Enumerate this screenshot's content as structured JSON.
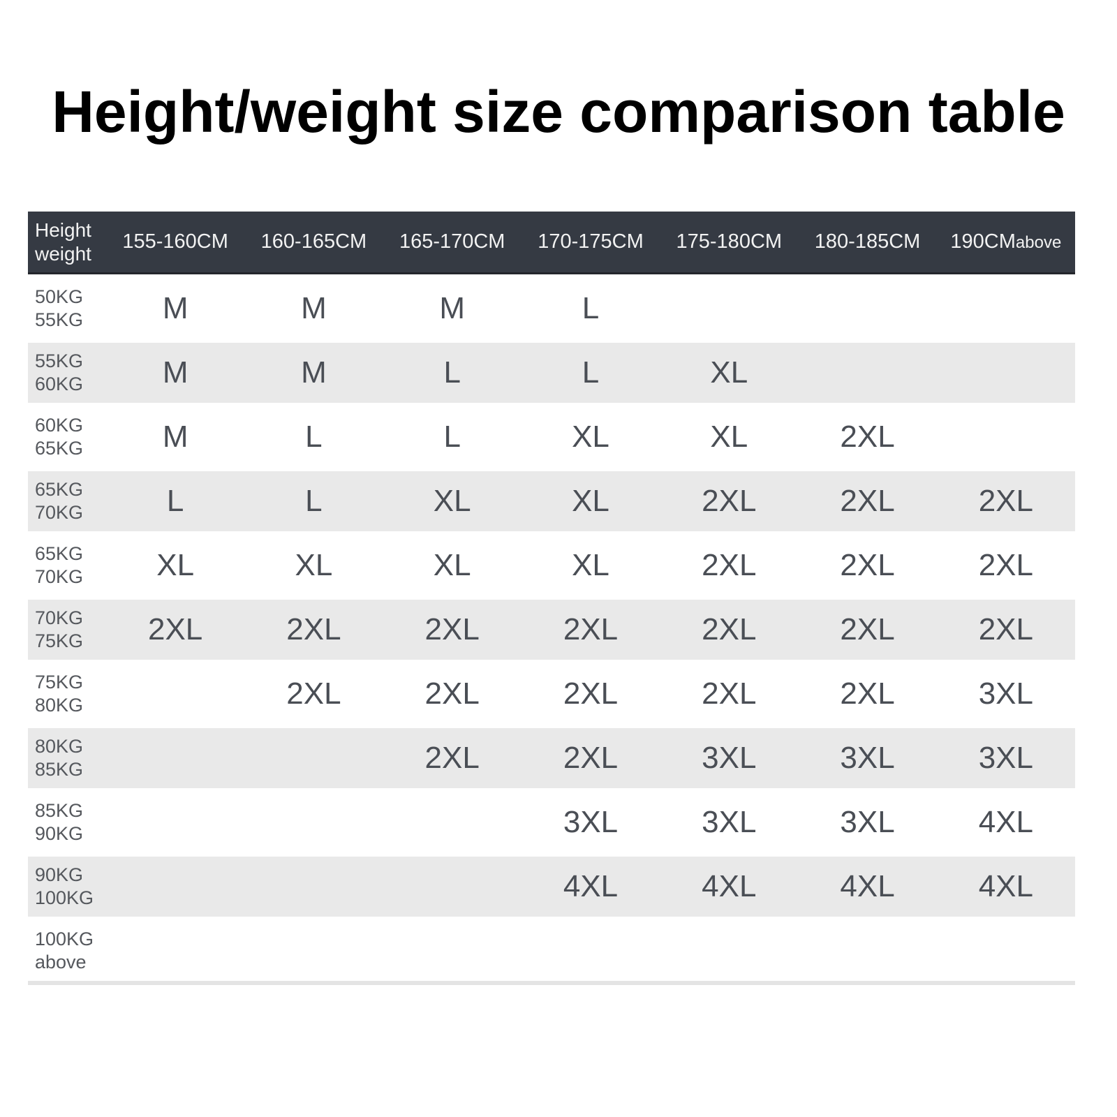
{
  "title": "Height/weight size comparison table",
  "header": {
    "corner": [
      "Height",
      "weight"
    ],
    "columns": [
      {
        "label": "155-160CM",
        "suffix": ""
      },
      {
        "label": "160-165CM",
        "suffix": ""
      },
      {
        "label": "165-170CM",
        "suffix": ""
      },
      {
        "label": "170-175CM",
        "suffix": ""
      },
      {
        "label": "175-180CM",
        "suffix": ""
      },
      {
        "label": "180-185CM",
        "suffix": ""
      },
      {
        "label": "190CM",
        "suffix": "above"
      }
    ]
  },
  "rows": [
    {
      "weight": [
        "50KG",
        "55KG"
      ],
      "sizes": [
        "M",
        "M",
        "M",
        "L",
        "",
        "",
        ""
      ]
    },
    {
      "weight": [
        "55KG",
        "60KG"
      ],
      "sizes": [
        "M",
        "M",
        "L",
        "L",
        "XL",
        "",
        ""
      ]
    },
    {
      "weight": [
        "60KG",
        "65KG"
      ],
      "sizes": [
        "M",
        "L",
        "L",
        "XL",
        "XL",
        "2XL",
        ""
      ]
    },
    {
      "weight": [
        "65KG",
        "70KG"
      ],
      "sizes": [
        "L",
        "L",
        "XL",
        "XL",
        "2XL",
        "2XL",
        "2XL"
      ]
    },
    {
      "weight": [
        "65KG",
        "70KG"
      ],
      "sizes": [
        "XL",
        "XL",
        "XL",
        "XL",
        "2XL",
        "2XL",
        "2XL"
      ]
    },
    {
      "weight": [
        "70KG",
        "75KG"
      ],
      "sizes": [
        "2XL",
        "2XL",
        "2XL",
        "2XL",
        "2XL",
        "2XL",
        "2XL"
      ]
    },
    {
      "weight": [
        "75KG",
        "80KG"
      ],
      "sizes": [
        "",
        "2XL",
        "2XL",
        "2XL",
        "2XL",
        "2XL",
        "3XL"
      ]
    },
    {
      "weight": [
        "80KG",
        "85KG"
      ],
      "sizes": [
        "",
        "",
        "2XL",
        "2XL",
        "3XL",
        "3XL",
        "3XL"
      ]
    },
    {
      "weight": [
        "85KG",
        "90KG"
      ],
      "sizes": [
        "",
        "",
        "",
        "3XL",
        "3XL",
        "3XL",
        "4XL"
      ]
    },
    {
      "weight": [
        "90KG",
        "100KG"
      ],
      "sizes": [
        "",
        "",
        "",
        "4XL",
        "4XL",
        "4XL",
        "4XL"
      ]
    },
    {
      "weight": [
        "100KG",
        "above"
      ],
      "sizes": [
        "",
        "",
        "",
        "",
        "",
        "",
        ""
      ]
    }
  ],
  "colors": {
    "header_bg": "#353a43",
    "header_border": "#23262c",
    "header_text": "#f2f2f2",
    "row_alt_bg": "#e9e9e9",
    "value_text": "#4a4e55",
    "label_text": "#55585d",
    "title_text": "#000000",
    "divider": "#e4e4e4"
  },
  "chart_data": {
    "type": "table",
    "title": "Height/weight size comparison table",
    "columns": [
      "Height weight",
      "155-160CM",
      "160-165CM",
      "165-170CM",
      "170-175CM",
      "175-180CM",
      "180-185CM",
      "190CM above"
    ],
    "rows": [
      [
        "50KG 55KG",
        "M",
        "M",
        "M",
        "L",
        "",
        "",
        ""
      ],
      [
        "55KG 60KG",
        "M",
        "M",
        "L",
        "L",
        "XL",
        "",
        ""
      ],
      [
        "60KG 65KG",
        "M",
        "L",
        "L",
        "XL",
        "XL",
        "2XL",
        ""
      ],
      [
        "65KG 70KG",
        "L",
        "L",
        "XL",
        "XL",
        "2XL",
        "2XL",
        "2XL"
      ],
      [
        "65KG 70KG",
        "XL",
        "XL",
        "XL",
        "XL",
        "2XL",
        "2XL",
        "2XL"
      ],
      [
        "70KG 75KG",
        "2XL",
        "2XL",
        "2XL",
        "2XL",
        "2XL",
        "2XL",
        "2XL"
      ],
      [
        "75KG 80KG",
        "",
        "2XL",
        "2XL",
        "2XL",
        "2XL",
        "2XL",
        "3XL"
      ],
      [
        "80KG 85KG",
        "",
        "",
        "2XL",
        "2XL",
        "3XL",
        "3XL",
        "3XL"
      ],
      [
        "85KG 90KG",
        "",
        "",
        "",
        "3XL",
        "3XL",
        "3XL",
        "4XL"
      ],
      [
        "90KG 100KG",
        "",
        "",
        "",
        "4XL",
        "4XL",
        "4XL",
        "4XL"
      ],
      [
        "100KG above",
        "",
        "",
        "",
        "",
        "",
        "",
        ""
      ]
    ],
    "layout": {
      "grid": false,
      "alternating_row_shading": true,
      "header_position": "top"
    }
  }
}
